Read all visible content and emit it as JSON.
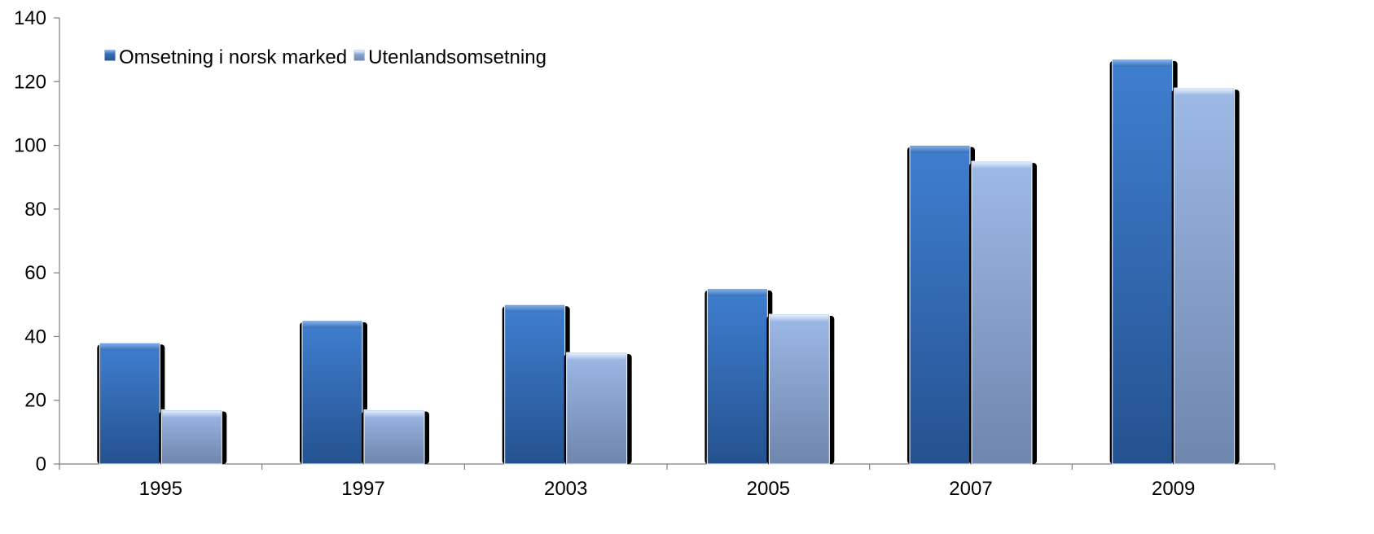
{
  "chart_data": {
    "type": "bar",
    "title": "",
    "xlabel": "",
    "ylabel": "",
    "categories": [
      "1995",
      "1997",
      "2003",
      "2005",
      "2007",
      "2009"
    ],
    "series": [
      {
        "name": "Omsetning i norsk marked",
        "values": [
          38,
          45,
          50,
          55,
          100,
          127
        ],
        "color": "#3A70B8"
      },
      {
        "name": "Utenlandsomsetning",
        "values": [
          17,
          17,
          35,
          47,
          95,
          118
        ],
        "color": "#8EAADB"
      }
    ],
    "ylim": [
      0,
      140
    ],
    "yticks": [
      "0",
      "20",
      "40",
      "60",
      "80",
      "100",
      "120",
      "140"
    ],
    "grid": false,
    "legend_position": "top-left"
  }
}
